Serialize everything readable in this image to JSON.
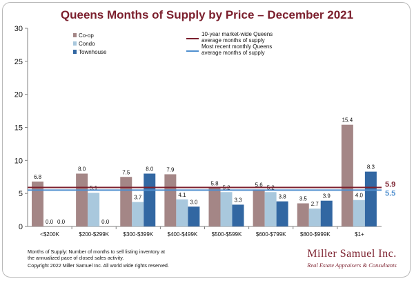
{
  "chart_data": {
    "type": "bar",
    "title": "Queens Months of Supply by Price – December 2021",
    "categories": [
      "<$200K",
      "$200-$299K",
      "$300-$399K",
      "$400-$499K",
      "$500-$599K",
      "$600-$799K",
      "$800-$999K",
      "$1+"
    ],
    "series": [
      {
        "name": "Co-op",
        "color": "#a48686",
        "values": [
          6.8,
          8.0,
          7.5,
          7.9,
          5.8,
          5.6,
          3.5,
          15.4
        ],
        "labels": [
          "6.8",
          "8.0",
          "7.5",
          "7.9",
          "5.8",
          "5.6",
          "3.5",
          "15.4"
        ]
      },
      {
        "name": "Condo",
        "color": "#a9c8dd",
        "values": [
          0.0,
          5.1,
          3.7,
          4.1,
          5.2,
          5.2,
          2.7,
          4.0
        ],
        "labels": [
          "0.0",
          "5.1",
          "3.7",
          "4.1",
          "5.2",
          "5.2",
          "2.7",
          "4.0"
        ]
      },
      {
        "name": "Townhouse",
        "color": "#3267a2",
        "values": [
          0.0,
          0.0,
          8.0,
          3.0,
          3.3,
          3.8,
          3.9,
          8.3
        ],
        "labels": [
          "0.0",
          "0.0",
          "8.0",
          "3.0",
          "3.3",
          "3.8",
          "3.9",
          "8.3"
        ]
      }
    ],
    "reference_lines": [
      {
        "name": "10-year market-wide Queens average months of supply",
        "line1": "10-year market-wide Queens",
        "line2": "average months of supply",
        "value": 5.9,
        "label": "5.9",
        "color": "#7b1f2d"
      },
      {
        "name": "Most recent monthly Queens average months of supply",
        "line1": "Most recent monthly Queens",
        "line2": "average months of supply",
        "value": 5.5,
        "label": "5.5",
        "color": "#4f8fcf"
      }
    ],
    "ylim": [
      0,
      30
    ],
    "yticks": [
      "0",
      "5",
      "10",
      "15",
      "20",
      "25",
      "30"
    ],
    "legend_position": "top-left"
  },
  "footer": {
    "note_line1": "Months of Supply: Number of months to sell listing inventory at",
    "note_line2": "the annualized pace of closed sales activity.",
    "copyright": "Copyright 2022 Miller Samuel Inc.  All world wide rights reserved."
  },
  "brand": {
    "name": "Miller Samuel Inc.",
    "tagline": "Real Estate Appraisers & Consultants"
  }
}
